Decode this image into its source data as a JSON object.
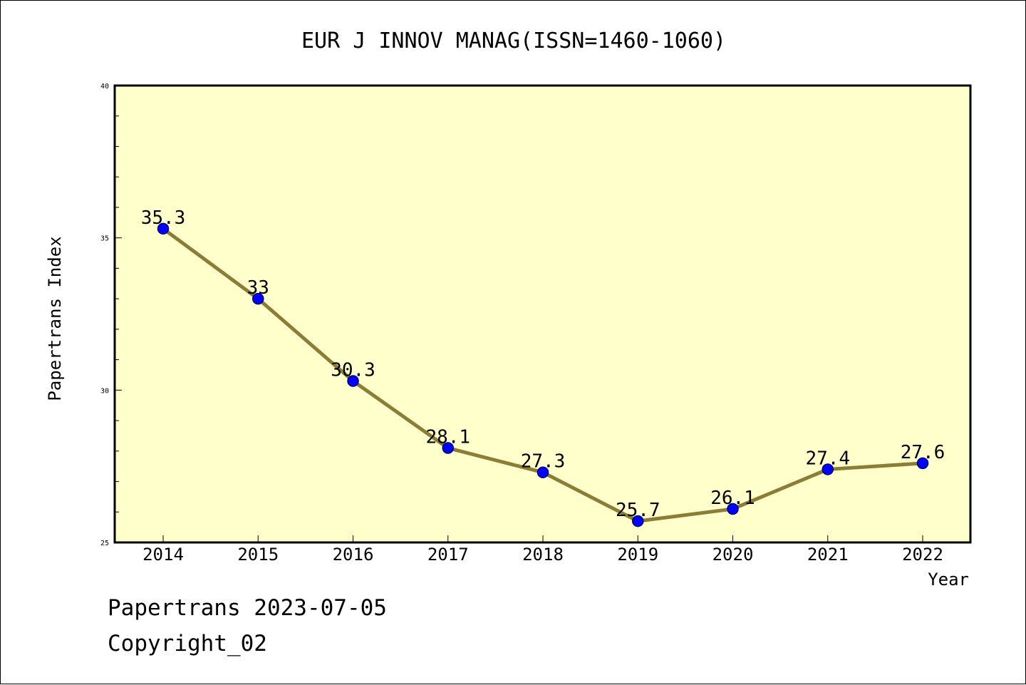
{
  "chart_data": {
    "type": "line",
    "title": "EUR J INNOV MANAG(ISSN=1460-1060)",
    "xlabel": "Year",
    "ylabel": "Papertrans Index",
    "categories": [
      "2014",
      "2015",
      "2016",
      "2017",
      "2018",
      "2019",
      "2020",
      "2021",
      "2022"
    ],
    "values": [
      35.3,
      33,
      30.3,
      28.1,
      27.3,
      25.7,
      26.1,
      27.4,
      27.6
    ],
    "data_labels": [
      "35.3",
      "33",
      "30.3",
      "28.1",
      "27.3",
      "25.7",
      "26.1",
      "27.4",
      "27.6"
    ],
    "ylim": [
      25,
      40
    ],
    "yticks": [
      25,
      30,
      35,
      40
    ],
    "grid": false,
    "line_color": "#8b7d35",
    "marker_color": "#0000ff",
    "plot_background": "#ffffcc"
  },
  "footer": {
    "line1": "Papertrans 2023-07-05",
    "line2": "Copyright_02"
  }
}
